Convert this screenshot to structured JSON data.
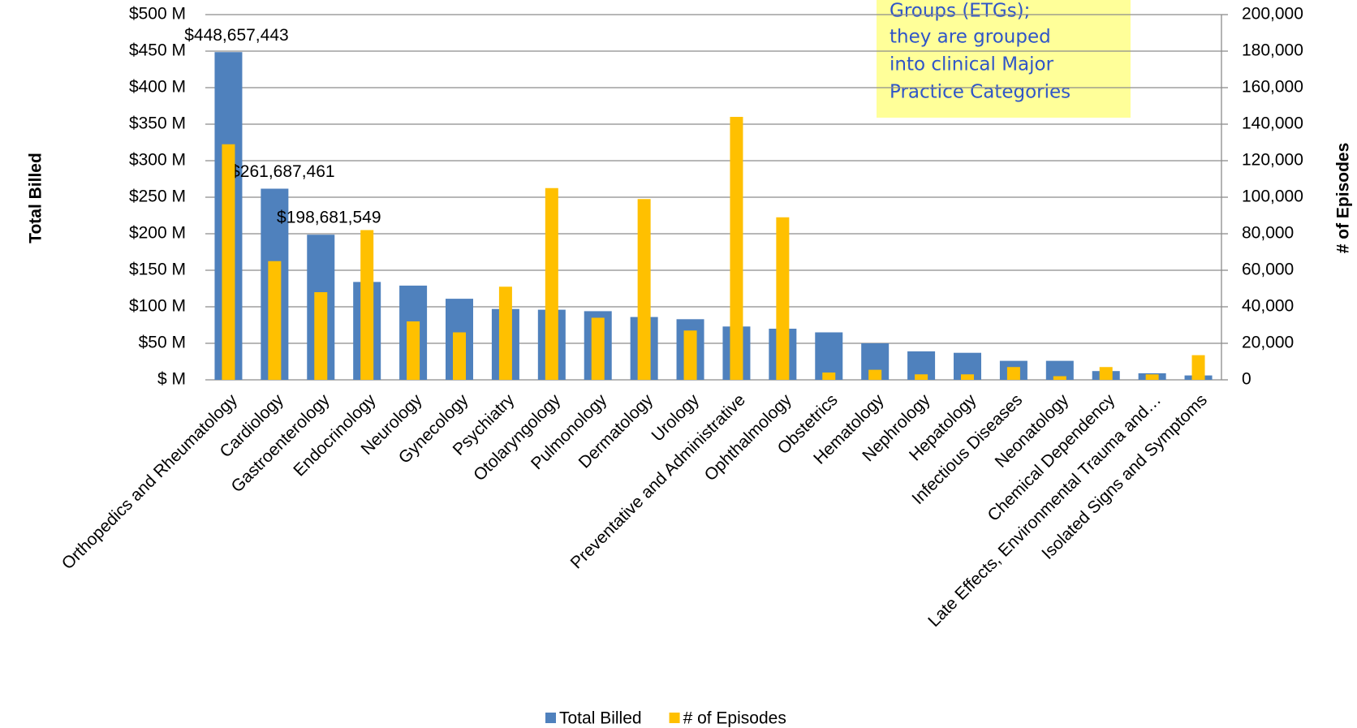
{
  "chart_data": {
    "type": "bar",
    "y_axis_label": "Total Billed",
    "y2_axis_label": "# of Episodes",
    "annotation": [
      "Groups (ETGs);",
      "they are grouped",
      "into clinical Major",
      "Practice Categories"
    ],
    "categories": [
      "Orthopedics and Rheumatology",
      "Cardiology",
      "Gastroenterology",
      "Endocrinology",
      "Neurology",
      "Gynecology",
      "Psychiatry",
      "Otolaryngology",
      "Pulmonology",
      "Dermatology",
      "Urology",
      "Preventative and Administrative",
      "Ophthalmology",
      "Obstetrics",
      "Hematology",
      "Nephrology",
      "Hepatology",
      "Infectious Diseases",
      "Neonatology",
      "Chemical Dependency",
      "Late Effects, Environmental Trauma and…",
      "Isolated Signs and Symptoms"
    ],
    "series": [
      {
        "name": "Total Billed",
        "color": "#4f81bd",
        "values": [
          448.657443,
          261.687461,
          198.681549,
          134,
          129,
          111,
          97,
          96,
          94,
          86,
          83,
          73,
          70,
          65,
          50,
          39,
          37,
          26,
          26,
          12,
          9,
          6
        ],
        "value_labels": [
          "$448,657,443",
          "$261,687,461",
          "$198,681,549",
          null,
          null,
          null,
          null,
          null,
          null,
          null,
          null,
          null,
          null,
          null,
          null,
          null,
          null,
          null,
          null,
          null,
          null,
          null
        ]
      },
      {
        "name": "# of Episodes",
        "color": "#ffc000",
        "axis": "y2",
        "values": [
          129000,
          65000,
          48000,
          82000,
          32000,
          26000,
          51000,
          105000,
          34000,
          99000,
          27000,
          144000,
          89000,
          4000,
          5500,
          3000,
          3000,
          7000,
          2000,
          7000,
          3000,
          13500
        ]
      }
    ],
    "ylim": [
      0,
      500
    ],
    "yticks": [
      {
        "value": 0,
        "label": "$ M"
      },
      {
        "value": 50,
        "label": "$50 M"
      },
      {
        "value": 100,
        "label": "$100 M"
      },
      {
        "value": 150,
        "label": "$150 M"
      },
      {
        "value": 200,
        "label": "$200 M"
      },
      {
        "value": 250,
        "label": "$250 M"
      },
      {
        "value": 300,
        "label": "$300 M"
      },
      {
        "value": 350,
        "label": "$350 M"
      },
      {
        "value": 400,
        "label": "$400 M"
      },
      {
        "value": 450,
        "label": "$450 M"
      },
      {
        "value": 500,
        "label": "$500 M"
      }
    ],
    "y2lim": [
      0,
      200000
    ],
    "y2ticks": [
      0,
      {
        "value": 20000,
        "label": "20,000"
      },
      {
        "value": 40000,
        "label": "40,000"
      },
      {
        "value": 60000,
        "label": "60,000"
      },
      {
        "value": 80000,
        "label": "80,000"
      },
      {
        "value": 100000,
        "label": "100,000"
      },
      {
        "value": 120000,
        "label": "120,000"
      },
      {
        "value": 140000,
        "label": "140,000"
      },
      {
        "value": 160000,
        "label": "160,000"
      },
      {
        "value": 180000,
        "label": "180,000"
      },
      {
        "value": 200000,
        "label": "200,000"
      }
    ],
    "grid": true,
    "legend": "bottom"
  }
}
